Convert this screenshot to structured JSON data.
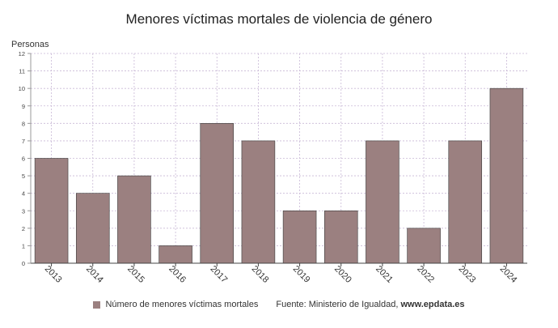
{
  "chart_data": {
    "type": "bar",
    "title": "Menores víctimas mortales de violencia de género",
    "ylabel": "Personas",
    "xlabel": "",
    "categories": [
      "2013",
      "2014",
      "2015",
      "2016",
      "2017",
      "2018",
      "2019",
      "2020",
      "2021",
      "2022",
      "2023",
      "2024"
    ],
    "series": [
      {
        "name": "Número de menores víctimas mortales",
        "values": [
          6,
          4,
          5,
          1,
          8,
          7,
          3,
          3,
          7,
          2,
          7,
          10
        ]
      }
    ],
    "ylim": [
      0,
      12
    ],
    "yticks": [
      0,
      1,
      2,
      3,
      4,
      5,
      6,
      7,
      8,
      9,
      10,
      11,
      12
    ],
    "grid": true,
    "legend": "bottom",
    "bar_color": "#9b8080"
  },
  "footer": {
    "source_prefix": "Fuente: Ministerio de Igualdad,",
    "source_site": "www.epdata.es"
  }
}
